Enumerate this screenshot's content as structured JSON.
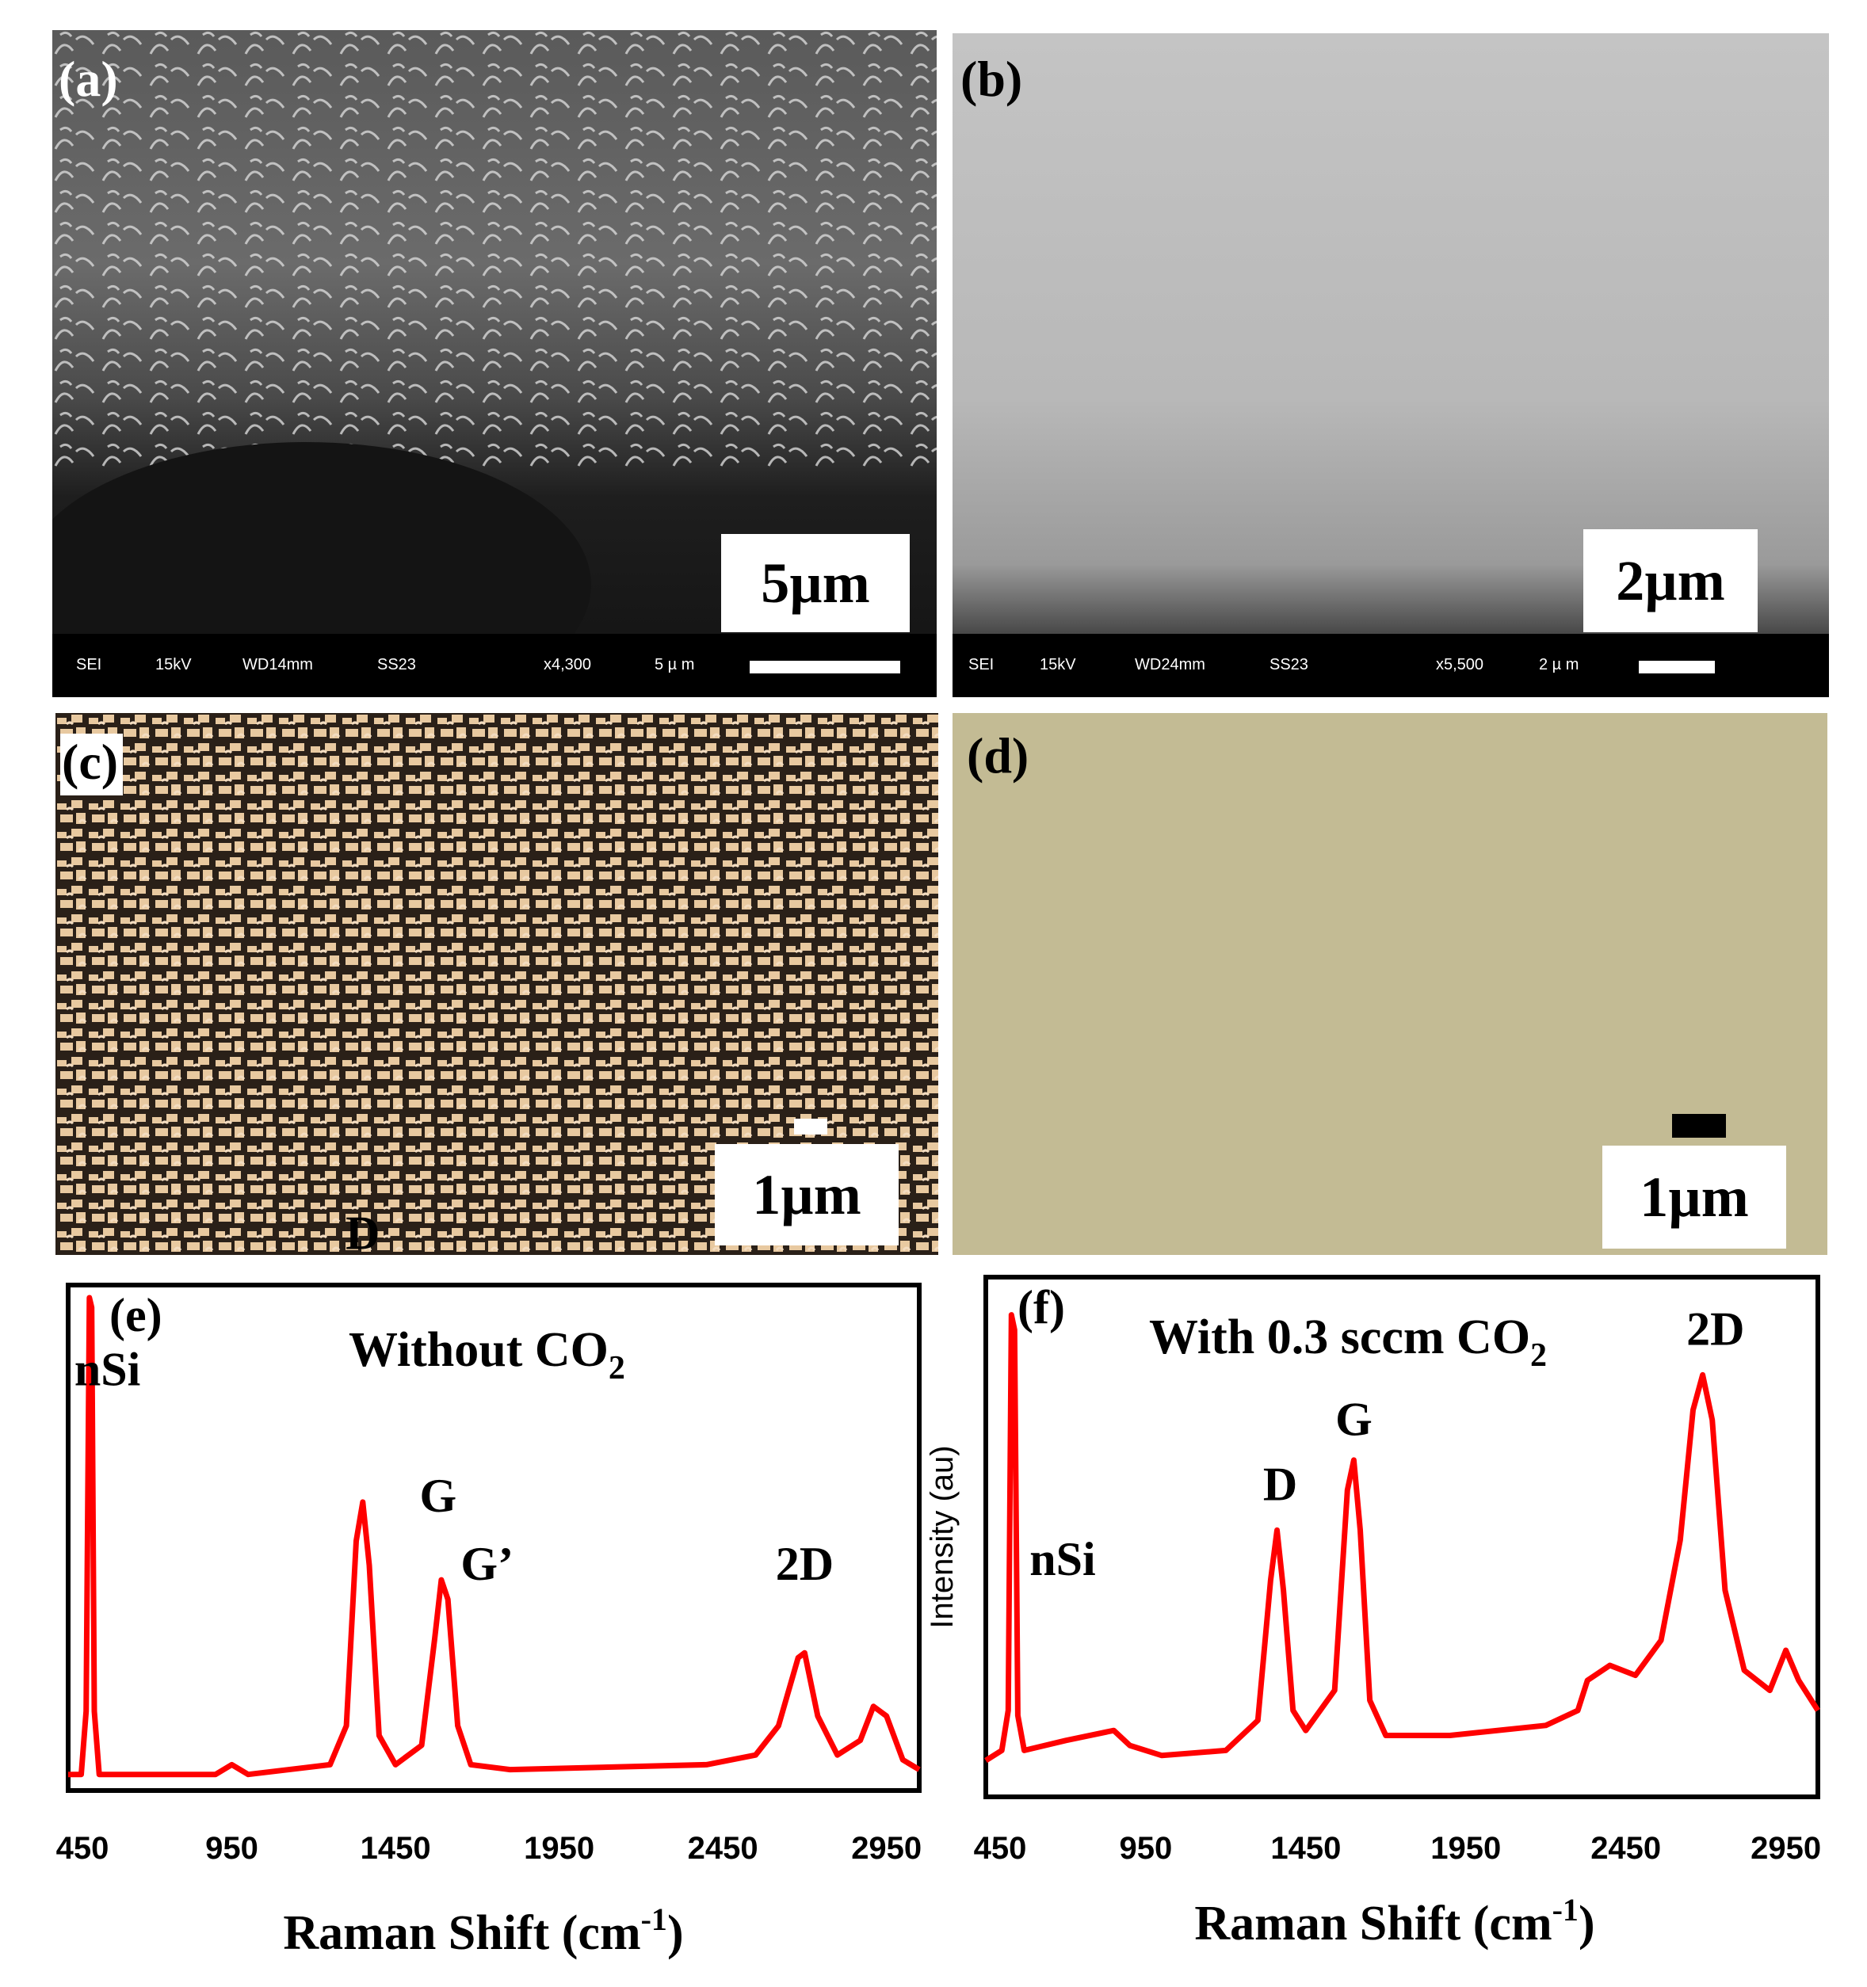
{
  "panels": {
    "a": {
      "label": "(a)",
      "scale": "5µm",
      "info": [
        "SEI",
        "15kV",
        "WD14mm",
        "SS23",
        "x4,300",
        "5 µ m"
      ]
    },
    "b": {
      "label": "(b)",
      "scale": "2µm",
      "info": [
        "SEI",
        "15kV",
        "WD24mm",
        "SS23",
        "x5,500",
        "2 µ m"
      ]
    },
    "c": {
      "label": "(c)",
      "scale": "1µm"
    },
    "d": {
      "label": "(d)",
      "scale": "1µm"
    }
  },
  "colors": {
    "spectrum": "#ff0000",
    "frame": "#000000",
    "photo_d": "#c3bb94",
    "photo_c_light": "#e8c9a0"
  },
  "chart_data": [
    {
      "type": "line",
      "panel_label": "(e)",
      "title": "Without CO",
      "title_subscript": "2",
      "xlabel": "Raman Shift (cm",
      "xlabel_sup": "-1",
      "xlabel_close": ")",
      "ylabel": "",
      "xlim": [
        450,
        3050
      ],
      "ylim": [
        0,
        1.0
      ],
      "xticks": [
        "450",
        "950",
        "1450",
        "1950",
        "2450",
        "2950"
      ],
      "peak_labels": [
        {
          "text": "nSi",
          "x": 570,
          "y": 0.82
        },
        {
          "text": "D",
          "x": 1350,
          "y": 1.1
        },
        {
          "text": "G",
          "x": 1580,
          "y": 0.56
        },
        {
          "text": "G’",
          "x": 1730,
          "y": 0.42
        },
        {
          "text": "2D",
          "x": 2700,
          "y": 0.42
        }
      ],
      "series": [
        {
          "values": [
            [
              450,
              0.02
            ],
            [
              490,
              0.02
            ],
            [
              505,
              0.15
            ],
            [
              515,
              1.0
            ],
            [
              522,
              0.98
            ],
            [
              530,
              0.15
            ],
            [
              545,
              0.02
            ],
            [
              900,
              0.02
            ],
            [
              950,
              0.04
            ],
            [
              1000,
              0.02
            ],
            [
              1250,
              0.04
            ],
            [
              1300,
              0.12
            ],
            [
              1330,
              0.5
            ],
            [
              1350,
              0.58
            ],
            [
              1370,
              0.45
            ],
            [
              1400,
              0.1
            ],
            [
              1450,
              0.04
            ],
            [
              1530,
              0.08
            ],
            [
              1570,
              0.3
            ],
            [
              1590,
              0.42
            ],
            [
              1610,
              0.38
            ],
            [
              1640,
              0.12
            ],
            [
              1680,
              0.04
            ],
            [
              1800,
              0.03
            ],
            [
              2400,
              0.04
            ],
            [
              2550,
              0.06
            ],
            [
              2620,
              0.12
            ],
            [
              2680,
              0.26
            ],
            [
              2700,
              0.27
            ],
            [
              2740,
              0.14
            ],
            [
              2800,
              0.06
            ],
            [
              2870,
              0.09
            ],
            [
              2910,
              0.16
            ],
            [
              2950,
              0.14
            ],
            [
              3000,
              0.05
            ],
            [
              3050,
              0.03
            ]
          ]
        }
      ]
    },
    {
      "type": "line",
      "panel_label": "(f)",
      "title": "With 0.3 sccm CO",
      "title_subscript": "2",
      "xlabel": "Raman Shift (cm",
      "xlabel_sup": "-1",
      "xlabel_close": ")",
      "ylabel": "Intensity (au)",
      "xlim": [
        450,
        3050
      ],
      "ylim": [
        0,
        1.0
      ],
      "xticks": [
        "450",
        "950",
        "1450",
        "1950",
        "2450",
        "2950"
      ],
      "peak_labels": [
        {
          "text": "nSi",
          "x": 690,
          "y": 0.43
        },
        {
          "text": "D",
          "x": 1370,
          "y": 0.58
        },
        {
          "text": "G",
          "x": 1600,
          "y": 0.71
        },
        {
          "text": "2D",
          "x": 2730,
          "y": 0.89
        }
      ],
      "series": [
        {
          "values": [
            [
              450,
              0.06
            ],
            [
              500,
              0.08
            ],
            [
              520,
              0.16
            ],
            [
              530,
              0.95
            ],
            [
              540,
              0.92
            ],
            [
              550,
              0.15
            ],
            [
              570,
              0.08
            ],
            [
              700,
              0.1
            ],
            [
              850,
              0.12
            ],
            [
              900,
              0.09
            ],
            [
              1000,
              0.07
            ],
            [
              1200,
              0.08
            ],
            [
              1300,
              0.14
            ],
            [
              1340,
              0.42
            ],
            [
              1360,
              0.52
            ],
            [
              1380,
              0.4
            ],
            [
              1410,
              0.16
            ],
            [
              1450,
              0.12
            ],
            [
              1540,
              0.2
            ],
            [
              1580,
              0.6
            ],
            [
              1600,
              0.66
            ],
            [
              1620,
              0.52
            ],
            [
              1650,
              0.18
            ],
            [
              1700,
              0.11
            ],
            [
              1900,
              0.11
            ],
            [
              2200,
              0.13
            ],
            [
              2300,
              0.16
            ],
            [
              2330,
              0.22
            ],
            [
              2400,
              0.25
            ],
            [
              2480,
              0.23
            ],
            [
              2560,
              0.3
            ],
            [
              2620,
              0.5
            ],
            [
              2660,
              0.76
            ],
            [
              2690,
              0.83
            ],
            [
              2720,
              0.74
            ],
            [
              2760,
              0.4
            ],
            [
              2820,
              0.24
            ],
            [
              2900,
              0.2
            ],
            [
              2950,
              0.28
            ],
            [
              2990,
              0.22
            ],
            [
              3050,
              0.16
            ]
          ]
        }
      ]
    }
  ]
}
